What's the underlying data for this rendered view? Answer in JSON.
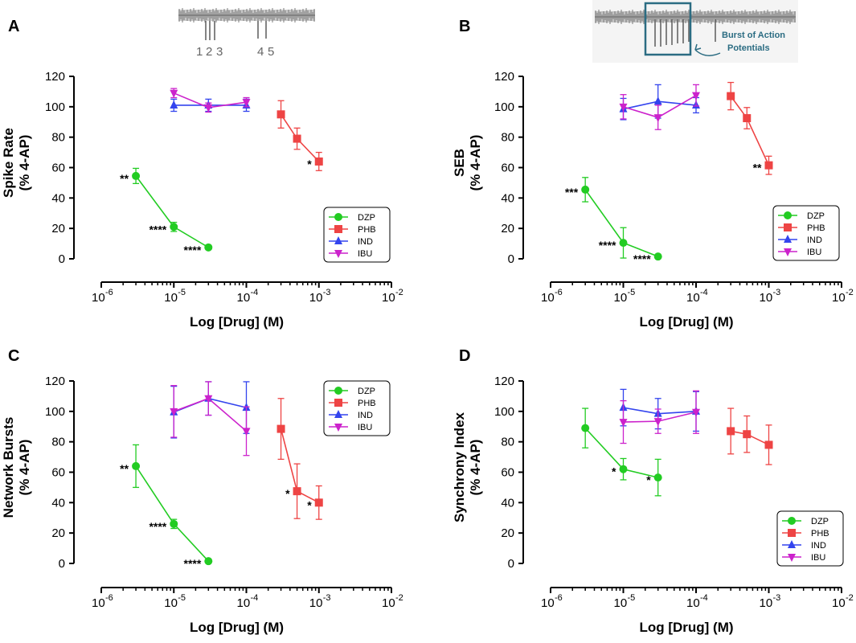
{
  "colors": {
    "DZP": "#22cc22",
    "PHB": "#ee4444",
    "IND": "#3344ee",
    "IBU": "#cc22cc",
    "axis": "#000000",
    "inset_trace": "#666666",
    "callout": "#2b6c82"
  },
  "inset_A": {
    "labels": [
      "1",
      "2",
      "3",
      "4",
      "5"
    ]
  },
  "inset_B": {
    "callout_lines": [
      "Burst of Action",
      "Potentials"
    ]
  },
  "chart_data": [
    {
      "panel": "A",
      "type": "line",
      "xscale": "log",
      "xlim": [
        1e-06,
        0.01
      ],
      "ylim": [
        0,
        120
      ],
      "ytick_values": [
        0,
        20,
        40,
        60,
        80,
        100,
        120
      ],
      "ytick_labels": [
        "0",
        "20",
        "40",
        "60",
        "80",
        "100",
        "120"
      ],
      "xtick_bases": [
        "10",
        "10",
        "10",
        "10",
        "10"
      ],
      "xtick_exponents": [
        "-6",
        "-5",
        "-4",
        "-3",
        "-2"
      ],
      "xlabel": "Log [Drug] (M)",
      "ylabel": [
        "Spike Rate",
        "(% 4-AP)"
      ],
      "legend_position": "bottom-right",
      "series": [
        {
          "name": "DZP",
          "marker": "circle",
          "x": [
            3e-06,
            1e-05,
            3e-05
          ],
          "y": [
            54.5,
            21,
            7.5
          ],
          "err": [
            5,
            3,
            1
          ]
        },
        {
          "name": "PHB",
          "marker": "square",
          "x": [
            0.0003,
            0.0005,
            0.001
          ],
          "y": [
            95,
            79,
            64
          ],
          "err": [
            9,
            7,
            6
          ]
        },
        {
          "name": "IND",
          "marker": "triangle-up",
          "x": [
            1e-05,
            3e-05,
            0.0001
          ],
          "y": [
            101,
            101,
            101
          ],
          "err": [
            4,
            4,
            4
          ]
        },
        {
          "name": "IBU",
          "marker": "triangle-down",
          "x": [
            1e-05,
            3e-05,
            0.0001
          ],
          "y": [
            109,
            99.5,
            103
          ],
          "err": [
            3,
            3,
            3
          ]
        }
      ],
      "annotations": [
        {
          "text": "**",
          "x": 3e-06,
          "y": 54.5,
          "anchor": "left"
        },
        {
          "text": "****",
          "x": 1e-05,
          "y": 21,
          "anchor": "left"
        },
        {
          "text": "****",
          "x": 3e-05,
          "y": 7.5,
          "anchor": "left"
        },
        {
          "text": "*",
          "x": 0.001,
          "y": 64,
          "anchor": "left"
        }
      ]
    },
    {
      "panel": "B",
      "type": "line",
      "xscale": "log",
      "xlim": [
        1e-06,
        0.01
      ],
      "ylim": [
        0,
        120
      ],
      "ytick_values": [
        0,
        20,
        40,
        60,
        80,
        100,
        120
      ],
      "ytick_labels": [
        "0",
        "20",
        "40",
        "60",
        "80",
        "100",
        "120"
      ],
      "xtick_bases": [
        "10",
        "10",
        "10",
        "10",
        "10"
      ],
      "xtick_exponents": [
        "-6",
        "-5",
        "-4",
        "-3",
        "-2"
      ],
      "xlabel": "Log [Drug] (M)",
      "ylabel": [
        "SEB",
        "(% 4-AP)"
      ],
      "legend_position": "bottom-right",
      "series": [
        {
          "name": "DZP",
          "marker": "circle",
          "x": [
            3e-06,
            1e-05,
            3e-05
          ],
          "y": [
            45.5,
            10.5,
            1.5
          ],
          "err": [
            8,
            10,
            1
          ]
        },
        {
          "name": "PHB",
          "marker": "square",
          "x": [
            0.0003,
            0.0005,
            0.001
          ],
          "y": [
            107,
            92.5,
            61.5
          ],
          "err": [
            9,
            7,
            6
          ]
        },
        {
          "name": "IND",
          "marker": "triangle-up",
          "x": [
            1e-05,
            3e-05,
            0.0001
          ],
          "y": [
            98.5,
            103.5,
            101
          ],
          "err": [
            7,
            11,
            5
          ]
        },
        {
          "name": "IBU",
          "marker": "triangle-down",
          "x": [
            1e-05,
            3e-05,
            0.0001
          ],
          "y": [
            100,
            93,
            107.5
          ],
          "err": [
            8,
            8,
            7
          ]
        }
      ],
      "annotations": [
        {
          "text": "***",
          "x": 3e-06,
          "y": 45.5,
          "anchor": "left"
        },
        {
          "text": "****",
          "x": 1e-05,
          "y": 10.5,
          "anchor": "left"
        },
        {
          "text": "****",
          "x": 3e-05,
          "y": 1.5,
          "anchor": "left"
        },
        {
          "text": "**",
          "x": 0.001,
          "y": 61.5,
          "anchor": "left"
        }
      ]
    },
    {
      "panel": "C",
      "type": "line",
      "xscale": "log",
      "xlim": [
        1e-06,
        0.01
      ],
      "ylim": [
        0,
        120
      ],
      "ytick_values": [
        0,
        20,
        40,
        60,
        80,
        100,
        120
      ],
      "ytick_labels": [
        "0",
        "20",
        "40",
        "60",
        "80",
        "100",
        "120"
      ],
      "xtick_bases": [
        "10",
        "10",
        "10",
        "10",
        "10"
      ],
      "xtick_exponents": [
        "-6",
        "-5",
        "-4",
        "-3",
        "-2"
      ],
      "xlabel": "Log [Drug] (M)",
      "ylabel": [
        "Network Bursts",
        "(% 4-AP)"
      ],
      "legend_position": "top-right",
      "series": [
        {
          "name": "DZP",
          "marker": "circle",
          "x": [
            3e-06,
            1e-05,
            3e-05
          ],
          "y": [
            64,
            26,
            1.5
          ],
          "err": [
            14,
            3,
            1
          ]
        },
        {
          "name": "PHB",
          "marker": "square",
          "x": [
            0.0003,
            0.0005,
            0.001
          ],
          "y": [
            88.5,
            47.5,
            40
          ],
          "err": [
            20,
            18,
            11
          ]
        },
        {
          "name": "IND",
          "marker": "triangle-up",
          "x": [
            1e-05,
            3e-05,
            0.0001
          ],
          "y": [
            99.5,
            108.5,
            102.5
          ],
          "err": [
            17,
            11,
            17
          ]
        },
        {
          "name": "IBU",
          "marker": "triangle-down",
          "x": [
            1e-05,
            3e-05,
            0.0001
          ],
          "y": [
            100,
            108.5,
            87
          ],
          "err": [
            17,
            11,
            16
          ]
        }
      ],
      "annotations": [
        {
          "text": "**",
          "x": 3e-06,
          "y": 64,
          "anchor": "left"
        },
        {
          "text": "****",
          "x": 1e-05,
          "y": 26,
          "anchor": "left"
        },
        {
          "text": "****",
          "x": 3e-05,
          "y": 1.5,
          "anchor": "left"
        },
        {
          "text": "*",
          "x": 0.0005,
          "y": 47.5,
          "anchor": "left"
        },
        {
          "text": "*",
          "x": 0.001,
          "y": 40,
          "anchor": "left"
        }
      ]
    },
    {
      "panel": "D",
      "type": "line",
      "xscale": "log",
      "xlim": [
        1e-06,
        0.01
      ],
      "ylim": [
        0,
        120
      ],
      "ytick_values": [
        0,
        20,
        40,
        60,
        80,
        100,
        120
      ],
      "ytick_labels": [
        "0",
        "20",
        "40",
        "60",
        "80",
        "100",
        "120"
      ],
      "xtick_bases": [
        "10",
        "10",
        "10",
        "10",
        "10"
      ],
      "xtick_exponents": [
        "-6",
        "-5",
        "-4",
        "-3",
        "-2"
      ],
      "xlabel": "Log [Drug] (M)",
      "ylabel": [
        "Synchrony Index",
        "(% 4-AP)"
      ],
      "legend_position": "bottom-right",
      "series": [
        {
          "name": "DZP",
          "marker": "circle",
          "x": [
            3e-06,
            1e-05,
            3e-05
          ],
          "y": [
            89,
            62,
            56.5
          ],
          "err": [
            13,
            7,
            12
          ]
        },
        {
          "name": "PHB",
          "marker": "square",
          "x": [
            0.0003,
            0.0005,
            0.001
          ],
          "y": [
            87,
            85,
            78
          ],
          "err": [
            15,
            12,
            13
          ]
        },
        {
          "name": "IND",
          "marker": "triangle-up",
          "x": [
            1e-05,
            3e-05,
            0.0001
          ],
          "y": [
            102.5,
            98.5,
            100
          ],
          "err": [
            12,
            10,
            13
          ]
        },
        {
          "name": "IBU",
          "marker": "triangle-down",
          "x": [
            1e-05,
            3e-05,
            0.0001
          ],
          "y": [
            93,
            93.5,
            99.5
          ],
          "err": [
            14,
            8,
            14
          ]
        }
      ],
      "annotations": [
        {
          "text": "*",
          "x": 1e-05,
          "y": 62,
          "anchor": "left"
        },
        {
          "text": "*",
          "x": 3e-05,
          "y": 56.5,
          "anchor": "left"
        }
      ]
    }
  ]
}
